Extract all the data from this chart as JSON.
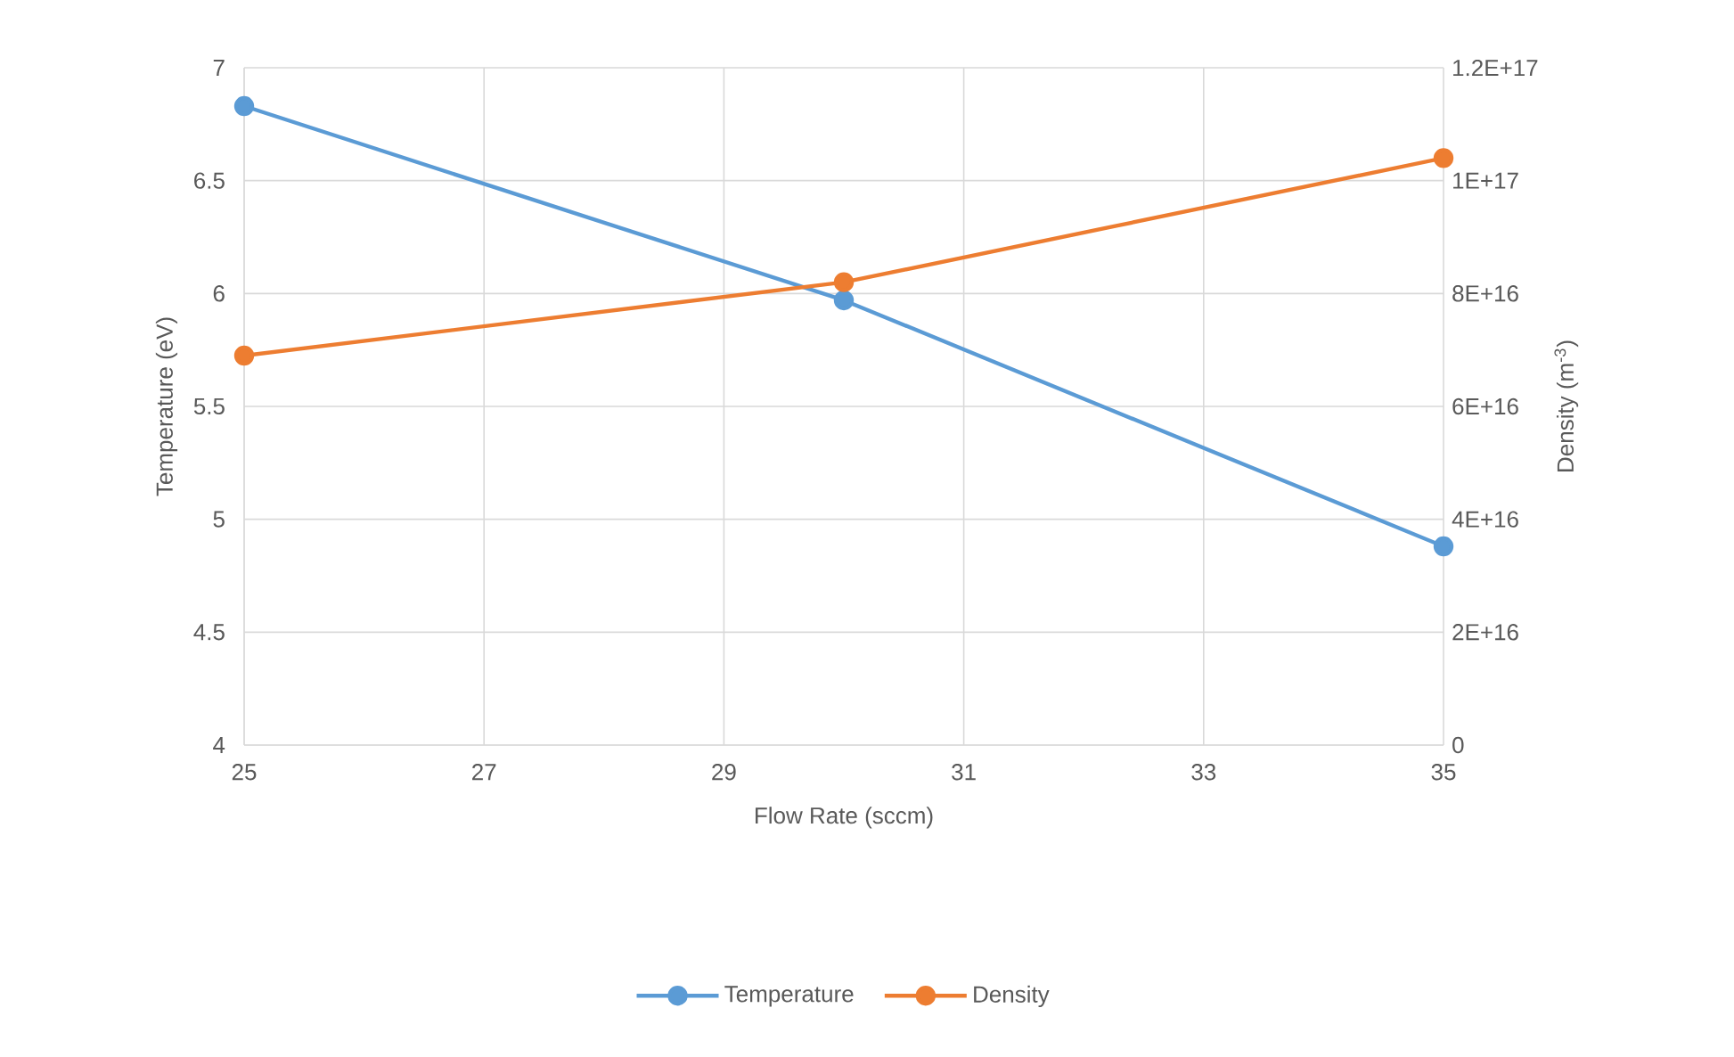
{
  "chart_data": {
    "type": "line",
    "xlabel": "Flow Rate (sccm)",
    "ylabel": "Temperature (eV)",
    "y2label": "Density (m$^{-3}$)",
    "x": [
      25,
      30,
      35
    ],
    "series": [
      {
        "name": "Temperature",
        "color": "#5b9bd5",
        "values": [
          6.83,
          5.97,
          4.88
        ]
      },
      {
        "name": "Density",
        "color": "#ed7d31",
        "axis": "y2",
        "values": [
          6.9e+16,
          8.2e+16,
          1.04e+17
        ]
      }
    ],
    "xlim": [
      25,
      35
    ],
    "xticks": [
      25,
      27,
      29,
      31,
      33,
      35
    ],
    "ylim": [
      4,
      7
    ],
    "yticks": [
      4,
      4.5,
      5,
      5.5,
      6,
      6.5,
      7
    ],
    "y2lim": [
      0,
      1.2e+17
    ],
    "y2ticks": [
      {
        "value": 0,
        "label": "0"
      },
      {
        "value": 2e+16,
        "label": "2E+16"
      },
      {
        "value": 4e+16,
        "label": "4E+16"
      },
      {
        "value": 6e+16,
        "label": "6E+16"
      },
      {
        "value": 8e+16,
        "label": "8E+16"
      },
      {
        "value": 1e+17,
        "label": "1E+17"
      },
      {
        "value": 1.2e+17,
        "label": "1.2E+17"
      }
    ],
    "grid": true,
    "legend": "bottom",
    "marker": "circle",
    "line_style": "solid"
  }
}
